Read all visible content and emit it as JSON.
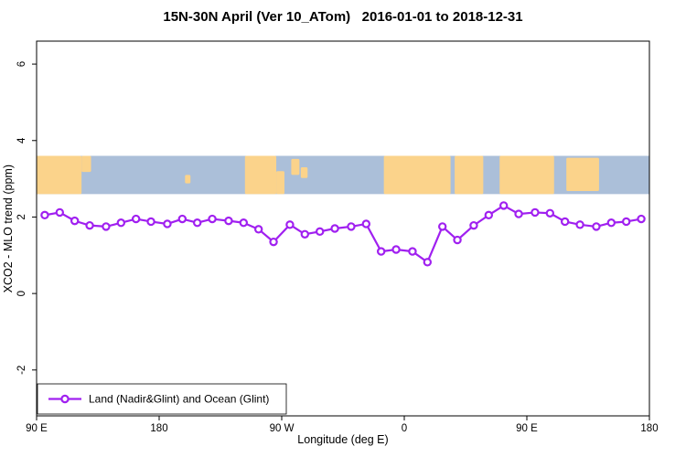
{
  "chart_data": {
    "type": "line",
    "title": "15N-30N April (Ver 10_ATom)   2016-01-01 to 2018-12-31",
    "xlabel": "Longitude (deg E)",
    "ylabel": "XCO2 - MLO trend (ppm)",
    "xlim": [
      90,
      540
    ],
    "ylim": [
      -3.2,
      6.6
    ],
    "grid": false,
    "x_ticks": [
      {
        "value": 90,
        "label": "90 E"
      },
      {
        "value": 180,
        "label": "180"
      },
      {
        "value": 270,
        "label": "90 W"
      },
      {
        "value": 360,
        "label": "0"
      },
      {
        "value": 450,
        "label": "90 E"
      },
      {
        "value": 540,
        "label": "180"
      }
    ],
    "y_ticks": [
      {
        "value": -2,
        "label": "-2"
      },
      {
        "value": 0,
        "label": "0"
      },
      {
        "value": 2,
        "label": "2"
      },
      {
        "value": 4,
        "label": "4"
      },
      {
        "value": 6,
        "label": "6"
      }
    ],
    "series": [
      {
        "name": "Land (Nadir&Glint) and Ocean (Glint)",
        "color": "#A020F0",
        "marker": "open-circle",
        "x": [
          96,
          107,
          118,
          129,
          141,
          152,
          163,
          174,
          186,
          197,
          208,
          219,
          231,
          242,
          253,
          264,
          276,
          287,
          298,
          309,
          321,
          332,
          343,
          354,
          366,
          377,
          388,
          399,
          411,
          422,
          433,
          444,
          456,
          467,
          478,
          489,
          501,
          512,
          523,
          534
        ],
        "values": [
          2.05,
          2.12,
          1.9,
          1.78,
          1.75,
          1.85,
          1.95,
          1.88,
          1.82,
          1.95,
          1.85,
          1.95,
          1.9,
          1.85,
          1.68,
          1.35,
          1.8,
          1.55,
          1.62,
          1.7,
          1.75,
          1.82,
          1.1,
          1.15,
          1.1,
          0.82,
          1.75,
          1.4,
          1.78,
          2.05,
          2.3,
          2.08,
          2.12,
          2.1,
          1.88,
          1.8,
          1.75,
          1.85,
          1.88,
          1.95
        ]
      }
    ],
    "legend": {
      "position": "bottom-left",
      "entries": [
        "Land (Nadir&Glint) and Ocean (Glint)"
      ]
    },
    "map_band": {
      "description": "world-map latitude strip 15N-30N drawn inside plot",
      "y_range": [
        2.6,
        3.6
      ],
      "ocean_color": "#ABBFD9",
      "land_color": "#FBD38B",
      "land_segments": [
        {
          "from": 90,
          "to": 123,
          "top": 0,
          "bottom": 1
        },
        {
          "from": 123,
          "to": 130,
          "top": 0,
          "bottom": 0.42
        },
        {
          "from": 199,
          "to": 203,
          "top": 0.5,
          "bottom": 0.72
        },
        {
          "from": 243,
          "to": 266,
          "top": 0,
          "bottom": 1
        },
        {
          "from": 266,
          "to": 272,
          "top": 0.4,
          "bottom": 1
        },
        {
          "from": 277,
          "to": 283,
          "top": 0.08,
          "bottom": 0.5
        },
        {
          "from": 284,
          "to": 289,
          "top": 0.3,
          "bottom": 0.58
        },
        {
          "from": 345,
          "to": 394,
          "top": 0,
          "bottom": 1
        },
        {
          "from": 397,
          "to": 418,
          "top": 0,
          "bottom": 1
        },
        {
          "from": 430,
          "to": 470,
          "top": 0,
          "bottom": 1
        },
        {
          "from": 479,
          "to": 503,
          "top": 0.05,
          "bottom": 0.92
        }
      ]
    }
  }
}
